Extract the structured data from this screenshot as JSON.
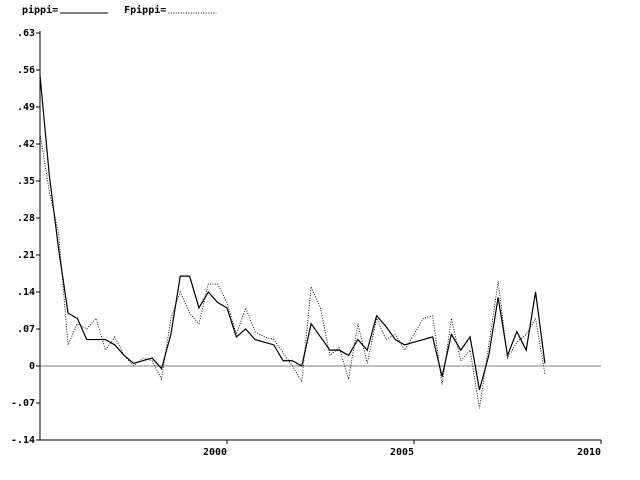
{
  "chart_data": {
    "type": "line",
    "x": [
      1995,
      1995.25,
      1995.5,
      1995.75,
      1996,
      1996.25,
      1996.5,
      1996.75,
      1997,
      1997.25,
      1997.5,
      1997.75,
      1998,
      1998.25,
      1998.5,
      1998.75,
      1999,
      1999.25,
      1999.5,
      1999.75,
      2000,
      2000.25,
      2000.5,
      2000.75,
      2001,
      2001.25,
      2001.5,
      2001.75,
      2002,
      2002.25,
      2002.5,
      2002.75,
      2003,
      2003.25,
      2003.5,
      2003.75,
      2004,
      2004.25,
      2004.5,
      2004.75,
      2005,
      2005.25,
      2005.5,
      2005.75,
      2006,
      2006.25,
      2006.5,
      2006.75,
      2007,
      2007.25,
      2007.5,
      2007.75,
      2008,
      2008.25,
      2008.5
    ],
    "series": [
      {
        "name": "pippi=",
        "color": "#000000",
        "dash": "none",
        "values": [
          0.55,
          0.36,
          0.22,
          0.1,
          0.09,
          0.05,
          0.05,
          0.05,
          0.04,
          0.02,
          0.005,
          0.01,
          0.015,
          -0.005,
          0.06,
          0.17,
          0.17,
          0.11,
          0.14,
          0.12,
          0.11,
          0.055,
          0.07,
          0.05,
          0.045,
          0.04,
          0.01,
          0.01,
          0.0,
          0.08,
          0.055,
          0.03,
          0.03,
          0.02,
          0.05,
          0.03,
          0.095,
          0.075,
          0.05,
          0.04,
          0.045,
          0.05,
          0.055,
          -0.02,
          0.06,
          0.03,
          0.055,
          -0.045,
          0.02,
          0.13,
          0.02,
          0.065,
          0.03,
          0.14,
          0.005
        ]
      },
      {
        "name": "Fpippi=",
        "color": "#000000",
        "dash": "1 1.5",
        "values": [
          0.44,
          0.33,
          0.25,
          0.04,
          0.08,
          0.07,
          0.09,
          0.03,
          0.055,
          0.02,
          0.0,
          0.015,
          0.01,
          -0.025,
          0.09,
          0.14,
          0.1,
          0.08,
          0.155,
          0.155,
          0.12,
          0.06,
          0.11,
          0.065,
          0.055,
          0.05,
          0.025,
          0.0,
          -0.03,
          0.15,
          0.11,
          0.02,
          0.035,
          -0.025,
          0.08,
          0.005,
          0.09,
          0.05,
          0.06,
          0.03,
          0.06,
          0.09,
          0.095,
          -0.035,
          0.09,
          0.01,
          0.03,
          -0.08,
          0.04,
          0.16,
          0.015,
          0.045,
          0.06,
          0.09,
          -0.015
        ]
      }
    ],
    "xlim": [
      1995,
      2010
    ],
    "xticks": [
      2000,
      2005,
      2010
    ],
    "ylim": [
      -0.14,
      0.63
    ],
    "yticks": [
      {
        "value": -0.14,
        "label": "-.14"
      },
      {
        "value": -0.07,
        "label": "-.07"
      },
      0,
      {
        "value": 0.07,
        "label": ".07"
      },
      {
        "value": 0.14,
        "label": ".14"
      },
      {
        "value": 0.21,
        "label": ".21"
      },
      {
        "value": 0.28,
        "label": ".28"
      },
      {
        "value": 0.35,
        "label": ".35"
      },
      {
        "value": 0.42,
        "label": ".42"
      },
      {
        "value": 0.49,
        "label": ".49"
      },
      {
        "value": 0.56,
        "label": ".56"
      },
      {
        "value": 0.63,
        "label": ".63"
      }
    ],
    "zero_line": true
  }
}
